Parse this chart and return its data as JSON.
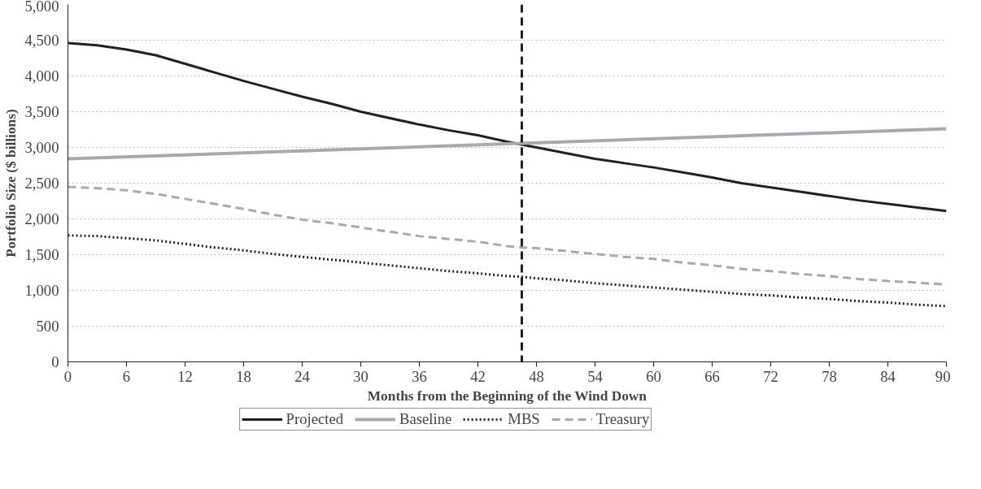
{
  "chart_data": {
    "type": "line",
    "xlabel": "Months from the Beginning of the Wind Down",
    "ylabel": "Portfolio Size ($ billions)",
    "x": [
      0,
      3,
      6,
      9,
      12,
      15,
      18,
      21,
      24,
      27,
      30,
      33,
      36,
      39,
      42,
      45,
      46.5,
      48,
      51,
      54,
      57,
      60,
      63,
      66,
      69,
      72,
      75,
      78,
      81,
      84,
      87,
      90
    ],
    "series": [
      {
        "name": "Projected",
        "color": "#231f20",
        "line_style": "solid",
        "values": [
          4460,
          4430,
          4370,
          4290,
          4170,
          4050,
          3930,
          3820,
          3710,
          3610,
          3500,
          3410,
          3320,
          3240,
          3170,
          3080,
          3040,
          3000,
          2920,
          2840,
          2780,
          2720,
          2650,
          2580,
          2500,
          2440,
          2380,
          2320,
          2260,
          2210,
          2160,
          2110
        ]
      },
      {
        "name": "Baseline",
        "color": "#a7a9ac",
        "line_style": "solid",
        "x": [
          0,
          90
        ],
        "values": [
          2840,
          3260
        ]
      },
      {
        "name": "MBS",
        "color": "#231f20",
        "line_style": "dotted",
        "values": [
          1770,
          1760,
          1730,
          1700,
          1650,
          1600,
          1560,
          1510,
          1470,
          1430,
          1390,
          1350,
          1310,
          1270,
          1240,
          1200,
          1190,
          1170,
          1140,
          1100,
          1070,
          1040,
          1010,
          980,
          950,
          930,
          900,
          880,
          850,
          830,
          800,
          780
        ]
      },
      {
        "name": "Treasury",
        "color": "#a7a9ac",
        "line_style": "dashed",
        "values": [
          2450,
          2430,
          2400,
          2350,
          2280,
          2210,
          2140,
          2060,
          1990,
          1940,
          1880,
          1820,
          1760,
          1720,
          1680,
          1620,
          1600,
          1590,
          1550,
          1510,
          1470,
          1440,
          1390,
          1350,
          1300,
          1270,
          1230,
          1200,
          1160,
          1130,
          1110,
          1080
        ]
      }
    ],
    "xlim": [
      0,
      90
    ],
    "xticks": [
      0,
      6,
      12,
      18,
      24,
      30,
      36,
      42,
      48,
      54,
      60,
      66,
      72,
      78,
      84,
      90
    ],
    "ylim": [
      0,
      5000
    ],
    "yticks": [
      0,
      500,
      {
        "value": 1000,
        "label": "1,000"
      },
      {
        "value": 1500,
        "label": "1,500"
      },
      {
        "value": 2000,
        "label": "2,000"
      },
      {
        "value": 2500,
        "label": "2,500"
      },
      {
        "value": 3000,
        "label": "3,000"
      },
      {
        "value": 3500,
        "label": "3,500"
      },
      {
        "value": 4000,
        "label": "4,000"
      },
      {
        "value": 4500,
        "label": "4,500"
      },
      {
        "value": 5000,
        "label": "5,000"
      }
    ],
    "ref_lines": [
      {
        "axis": "x",
        "value": 46.5,
        "color": "#231f20",
        "line_style": "dashed"
      }
    ],
    "grid": "y",
    "legend": "bottom",
    "marker": "none"
  }
}
